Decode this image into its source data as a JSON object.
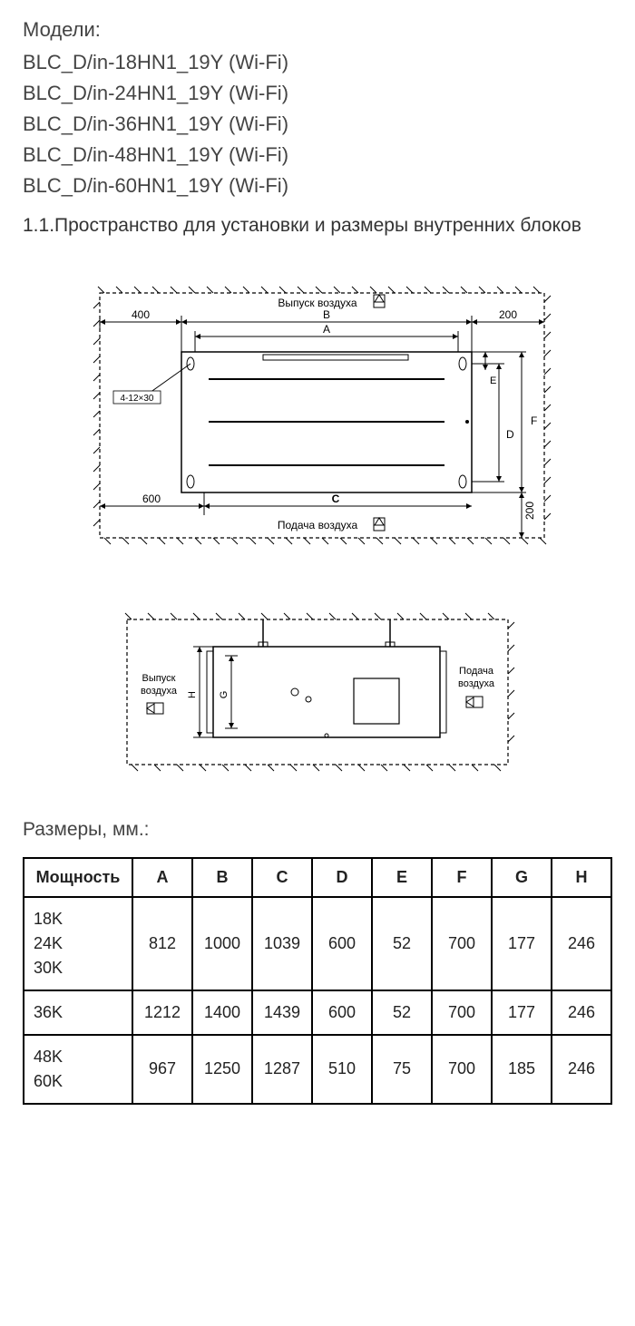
{
  "models_heading": "Модели:",
  "models": [
    "BLC_D/in-18HN1_19Y (Wi-Fi)",
    "BLC_D/in-24HN1_19Y (Wi-Fi)",
    "BLC_D/in-36HN1_19Y (Wi-Fi)",
    "BLC_D/in-48HN1_19Y (Wi-Fi)",
    "BLC_D/in-60HN1_19Y (Wi-Fi)"
  ],
  "section_heading": "1.1.Пространство для установки и размеры внутренних блоков",
  "diagram1": {
    "outlet_label": "Выпуск воздуха",
    "inlet_label": "Подача воздуха",
    "hole_label": "4-12×30",
    "dim_400": "400",
    "dim_600": "600",
    "dim_200a": "200",
    "dim_200b": "200",
    "dim_A": "A",
    "dim_B": "B",
    "dim_C": "C",
    "dim_D": "D",
    "dim_E": "E",
    "dim_F": "F"
  },
  "diagram2": {
    "outlet_label1": "Выпуск",
    "outlet_label2": "воздуха",
    "inlet_label1": "Подача",
    "inlet_label2": "воздуха",
    "dim_G": "G",
    "dim_H": "H"
  },
  "dims_heading": "Размеры, мм.:",
  "table": {
    "headers": [
      "Мощность",
      "A",
      "B",
      "C",
      "D",
      "E",
      "F",
      "G",
      "H"
    ],
    "rows": [
      {
        "power": "18K\n24K\n30K",
        "vals": [
          "812",
          "1000",
          "1039",
          "600",
          "52",
          "700",
          "177",
          "246"
        ]
      },
      {
        "power": "36K",
        "vals": [
          "1212",
          "1400",
          "1439",
          "600",
          "52",
          "700",
          "177",
          "246"
        ]
      },
      {
        "power": "48K\n60K",
        "vals": [
          "967",
          "1250",
          "1287",
          "510",
          "75",
          "700",
          "185",
          "246"
        ]
      }
    ]
  }
}
